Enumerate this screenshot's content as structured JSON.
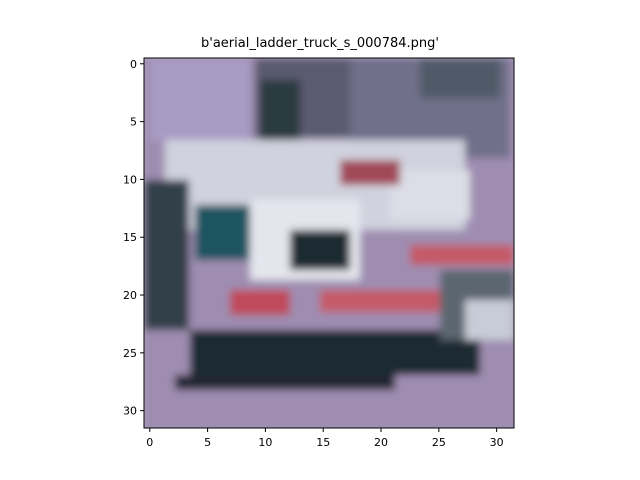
{
  "title": "b'aerial_ladder_truck_s_000784.png'",
  "image": {
    "subject": "pixelated 32x32 photo of an aerial ladder fire truck",
    "palette": {
      "background": "#9e8db0",
      "sky_light": "#a89ac2",
      "dark": "#1f2b33",
      "teal": "#1e5560",
      "white": "#e4e6ee",
      "red": "#c55a68",
      "grey": "#6f6f82"
    }
  },
  "chart_data": {
    "type": "image",
    "title": "b'aerial_ladder_truck_s_000784.png'",
    "xlim": [
      -0.5,
      31.5
    ],
    "ylim": [
      31.5,
      -0.5
    ],
    "x_ticks": [
      0,
      5,
      10,
      15,
      20,
      25,
      30
    ],
    "y_ticks": [
      0,
      5,
      10,
      15,
      20,
      25,
      30
    ]
  }
}
